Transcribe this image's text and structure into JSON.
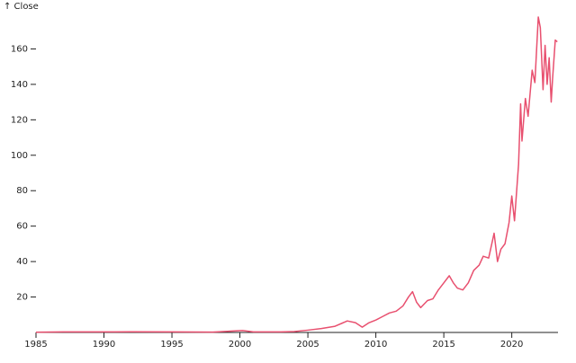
{
  "chart_data": {
    "type": "line",
    "y_label": "↑ Close",
    "color": "#e8506f",
    "x": [
      1985,
      1987,
      1990,
      1992,
      1995,
      1998,
      2000,
      2000.2,
      2001,
      2003,
      2004,
      2005,
      2006,
      2007,
      2007.9,
      2008.5,
      2009.0,
      2009.5,
      2010,
      2010.5,
      2011,
      2011.5,
      2012,
      2012.4,
      2012.7,
      2013.0,
      2013.3,
      2013.8,
      2014.2,
      2014.6,
      2015.0,
      2015.4,
      2015.7,
      2016.0,
      2016.4,
      2016.8,
      2017.2,
      2017.6,
      2017.9,
      2018.3,
      2018.7,
      2018.95,
      2019.2,
      2019.5,
      2019.8,
      2020.0,
      2020.2,
      2020.5,
      2020.65,
      2020.75,
      2021.0,
      2021.2,
      2021.5,
      2021.7,
      2021.95,
      2022.1,
      2022.3,
      2022.45,
      2022.6,
      2022.75,
      2022.9,
      2023.0,
      2023.2,
      2023.35
    ],
    "values": [
      0.1,
      0.3,
      0.3,
      0.4,
      0.3,
      0.2,
      1.0,
      1.1,
      0.3,
      0.3,
      0.5,
      1.3,
      2.2,
      3.5,
      6.5,
      5.5,
      3.0,
      5.5,
      7,
      9,
      11,
      12,
      15,
      20,
      23,
      17,
      14,
      18,
      19,
      24,
      28,
      32,
      28,
      25,
      24,
      28,
      35,
      38,
      43,
      42,
      56,
      40,
      47,
      50,
      62,
      77,
      63,
      95,
      129,
      108,
      132,
      122,
      148,
      141,
      178,
      172,
      137,
      162,
      140,
      155,
      130,
      143,
      165,
      164
    ],
    "xlim": [
      1985,
      2023.4
    ],
    "xticks": [
      1985,
      1990,
      1995,
      2000,
      2005,
      2010,
      2015,
      2020
    ],
    "ylim": [
      0,
      180
    ],
    "yticks": [
      20,
      40,
      60,
      80,
      100,
      120,
      140,
      160
    ]
  }
}
